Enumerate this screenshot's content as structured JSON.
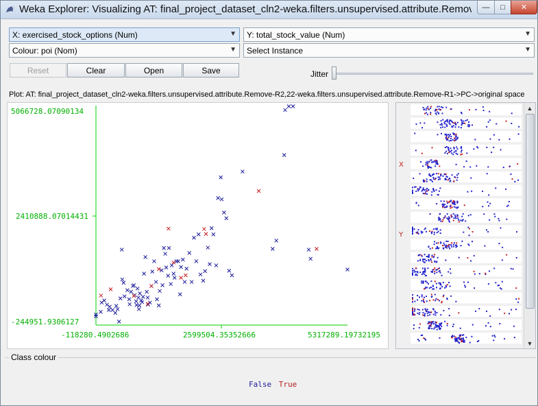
{
  "window": {
    "title": "Weka Explorer: Visualizing AT: final_project_dataset_cln2-weka.filters.unsupervised.attribute.Remov...",
    "minimize_glyph": "—",
    "maximize_glyph": "□",
    "close_glyph": "✕"
  },
  "selectors": {
    "x_axis": "X: exercised_stock_options (Num)",
    "y_axis": "Y: total_stock_value (Num)",
    "colour": "Colour: poi (Nom)",
    "instance": "Select Instance",
    "arrow_glyph": "▼"
  },
  "buttons": {
    "reset": "Reset",
    "clear": "Clear",
    "open": "Open",
    "save": "Save"
  },
  "jitter": {
    "label": "Jitter",
    "value": 0
  },
  "plot": {
    "caption": "Plot: AT: final_project_dataset_cln2-weka.filters.unsupervised.attribute.Remove-R2,22-weka.filters.unsupervised.attribute.Remove-R1->PC->original space",
    "x_ticks": [
      "-118280.4902686",
      "2599504.35352666",
      "5317289.19732195"
    ],
    "y_ticks": [
      "5066728.07090134",
      "2410888.07014431",
      "-244951.9306127"
    ]
  },
  "matrix": {
    "x_marker": "X",
    "y_marker": "Y",
    "scroll_up": "▲",
    "scroll_down": "▼"
  },
  "class_colour": {
    "title": "Class colour",
    "false_label": "False",
    "true_label": "True"
  },
  "colors": {
    "false_class": "#1c1c9a",
    "true_class": "#c42020",
    "axis": "#00d000"
  },
  "chart_data": {
    "type": "scatter",
    "xlabel": "exercised_stock_options",
    "ylabel": "total_stock_value",
    "xlim": [
      -118280.4902686,
      5317289.19732195
    ],
    "ylim": [
      -244951.9306127,
      5066728.07090134
    ],
    "series": [
      {
        "name": "False",
        "points": [
          [
            -118280,
            -33000
          ],
          [
            -118280,
            10000
          ],
          [
            -15000,
            75000
          ],
          [
            160000,
            120000
          ],
          [
            5000,
            300000
          ],
          [
            60000,
            350000
          ],
          [
            120000,
            250000
          ],
          [
            180000,
            200000
          ],
          [
            240000,
            120000
          ],
          [
            300000,
            50000
          ],
          [
            320000,
            220000
          ],
          [
            350000,
            140000
          ],
          [
            380000,
            -160000
          ],
          [
            410000,
            400000
          ],
          [
            440000,
            1580000
          ],
          [
            450000,
            860000
          ],
          [
            480000,
            780000
          ],
          [
            500000,
            450000
          ],
          [
            560000,
            600000
          ],
          [
            600000,
            380000
          ],
          [
            610000,
            260000
          ],
          [
            640000,
            560000
          ],
          [
            680000,
            700000
          ],
          [
            700000,
            720000
          ],
          [
            720000,
            480000
          ],
          [
            750000,
            330000
          ],
          [
            760000,
            240000
          ],
          [
            780000,
            640000
          ],
          [
            800000,
            420000
          ],
          [
            810000,
            140000
          ],
          [
            820000,
            230000
          ],
          [
            830000,
            520000
          ],
          [
            860000,
            350000
          ],
          [
            880000,
            310000
          ],
          [
            900000,
            440000
          ],
          [
            920000,
            1000000
          ],
          [
            950000,
            1400000
          ],
          [
            980000,
            560000
          ],
          [
            1000000,
            420000
          ],
          [
            1010000,
            250000
          ],
          [
            1050000,
            300000
          ],
          [
            1080000,
            700000
          ],
          [
            1100000,
            1050000
          ],
          [
            1140000,
            1300000
          ],
          [
            1180000,
            800000
          ],
          [
            1200000,
            380000
          ],
          [
            1240000,
            230000
          ],
          [
            1260000,
            580000
          ],
          [
            1300000,
            1080000
          ],
          [
            1320000,
            720000
          ],
          [
            1350000,
            1620000
          ],
          [
            1380000,
            1480000
          ],
          [
            1400000,
            1150000
          ],
          [
            1440000,
            950000
          ],
          [
            1460000,
            1620000
          ],
          [
            1500000,
            750000
          ],
          [
            1520000,
            1200000
          ],
          [
            1560000,
            1000000
          ],
          [
            1580000,
            900000
          ],
          [
            1620000,
            1300000
          ],
          [
            1660000,
            1300000
          ],
          [
            1700000,
            500000
          ],
          [
            1720000,
            1160000
          ],
          [
            1760000,
            1340000
          ],
          [
            1800000,
            800000
          ],
          [
            1840000,
            1120000
          ],
          [
            1900000,
            1500000
          ],
          [
            1950000,
            800000
          ],
          [
            2000000,
            1870000
          ],
          [
            2050000,
            1300000
          ],
          [
            2100000,
            1950000
          ],
          [
            2140000,
            980000
          ],
          [
            2200000,
            830000
          ],
          [
            2240000,
            1060000
          ],
          [
            2300000,
            1630000
          ],
          [
            2340000,
            1230000
          ],
          [
            2380000,
            2100000
          ],
          [
            2420000,
            1950000
          ],
          [
            2480000,
            1200000
          ],
          [
            2520000,
            2830000
          ],
          [
            2580000,
            3330000
          ],
          [
            2600000,
            2800000
          ],
          [
            2650000,
            2480000
          ],
          [
            2700000,
            2340000
          ],
          [
            2760000,
            1070000
          ],
          [
            2820000,
            960000
          ],
          [
            3050000,
            3470000
          ],
          [
            3700000,
            1600000
          ],
          [
            3780000,
            1800000
          ],
          [
            3950000,
            3870000
          ],
          [
            3970000,
            4960000
          ],
          [
            4050000,
            5050000
          ],
          [
            4140000,
            5050000
          ],
          [
            4480000,
            1580000
          ],
          [
            4520000,
            1360000
          ],
          [
            5317289,
            1100000
          ]
        ]
      },
      {
        "name": "True",
        "points": [
          [
            -10000,
            470000
          ],
          [
            200000,
            620000
          ],
          [
            700000,
            460000
          ],
          [
            1000000,
            270000
          ],
          [
            1080000,
            700000
          ],
          [
            1240000,
            1110000
          ],
          [
            1450000,
            2090000
          ],
          [
            1560000,
            1270000
          ],
          [
            1720000,
            900000
          ],
          [
            1820000,
            960000
          ],
          [
            2220000,
            2080000
          ],
          [
            2260000,
            1960000
          ],
          [
            3400000,
            3000000
          ],
          [
            4650000,
            1600000
          ]
        ]
      }
    ]
  }
}
